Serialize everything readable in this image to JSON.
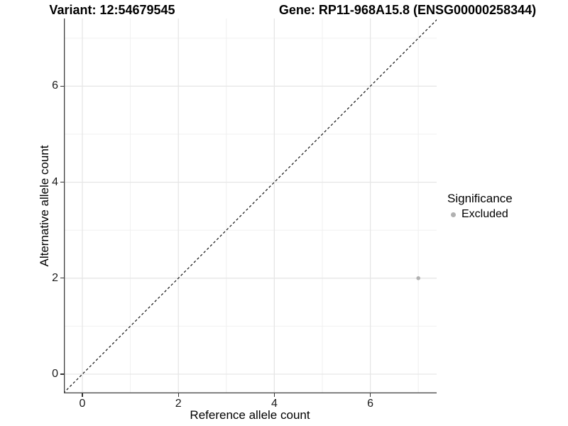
{
  "chart_data": {
    "type": "scatter",
    "titles": {
      "left": "Variant: 12:54679545",
      "right": "Gene: RP11-968A15.8 (ENSG00000258344)"
    },
    "xlabel": "Reference allele count",
    "ylabel": "Alternative allele count",
    "xlim": [
      -0.39,
      7.42
    ],
    "ylim": [
      -0.4,
      7.42
    ],
    "x_major_ticks": [
      0,
      2,
      4,
      6
    ],
    "y_major_ticks": [
      0,
      2,
      4,
      6
    ],
    "x_minor_gridlines": [
      1,
      3,
      5,
      7
    ],
    "y_minor_gridlines": [
      1,
      3,
      5,
      7
    ],
    "grid": "major+minor",
    "legend_position": "right",
    "identity_line": {
      "slope": 1,
      "intercept": 0,
      "style": "dashed",
      "color": "#111111"
    },
    "points": [
      {
        "x": 7,
        "y": 2,
        "significance": "Excluded"
      }
    ],
    "legend": {
      "title": "Significance",
      "entries": [
        {
          "label": "Excluded",
          "color": "#b1b1b1"
        }
      ]
    },
    "style_colors": {
      "major_grid": "#e6e6e6",
      "minor_grid": "#f0f0f0",
      "axis_line": "#3d3d3d",
      "tick_text": "#1a1a1a"
    }
  }
}
